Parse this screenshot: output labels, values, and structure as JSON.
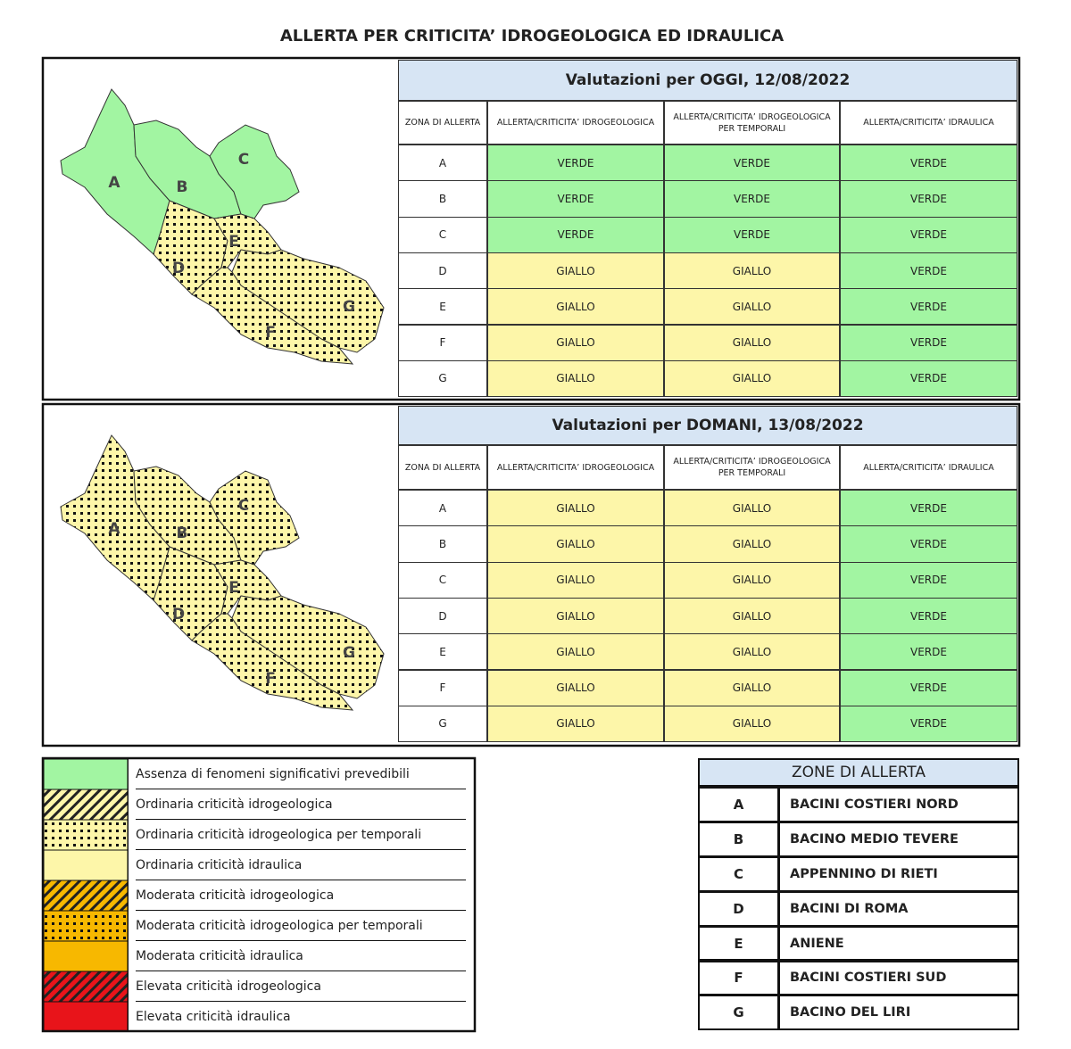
{
  "title": "ALLERTA PER CRITICITA’ IDROGEOLOGICA ED IDRAULICA",
  "cell_colors": {
    "VERDE": "#a2f5a2",
    "GIALLO": "#fdf6a9"
  },
  "panels": [
    {
      "heading": "Valutazioni per OGGI, 12/08/2022",
      "map_labels": [
        "A",
        "B",
        "C",
        "D",
        "E",
        "F",
        "G"
      ],
      "columns": [
        "ZONA DI ALLERTA",
        "ALLERTA/CRITICITA’ IDROGEOLOGICA",
        "ALLERTA/CRITICITA’ IDROGEOLOGICA PER TEMPORALI",
        "ALLERTA/CRITICITA’ IDRAULICA"
      ],
      "rows": [
        [
          "A",
          "VERDE",
          "VERDE",
          "VERDE"
        ],
        [
          "B",
          "VERDE",
          "VERDE",
          "VERDE"
        ],
        [
          "C",
          "VERDE",
          "VERDE",
          "VERDE"
        ],
        [
          "D",
          "GIALLO",
          "GIALLO",
          "VERDE"
        ],
        [
          "E",
          "GIALLO",
          "GIALLO",
          "VERDE"
        ],
        [
          "F",
          "GIALLO",
          "GIALLO",
          "VERDE"
        ],
        [
          "G",
          "GIALLO",
          "GIALLO",
          "VERDE"
        ]
      ]
    },
    {
      "heading": "Valutazioni per DOMANI, 13/08/2022",
      "map_labels": [
        "A",
        "B",
        "C",
        "D",
        "E",
        "F",
        "G"
      ],
      "columns": [
        "ZONA DI ALLERTA",
        "ALLERTA/CRITICITA’ IDROGEOLOGICA",
        "ALLERTA/CRITICITA’ IDROGEOLOGICA PER TEMPORALI",
        "ALLERTA/CRITICITA’ IDRAULICA"
      ],
      "rows": [
        [
          "A",
          "GIALLO",
          "GIALLO",
          "VERDE"
        ],
        [
          "B",
          "GIALLO",
          "GIALLO",
          "VERDE"
        ],
        [
          "C",
          "GIALLO",
          "GIALLO",
          "VERDE"
        ],
        [
          "D",
          "GIALLO",
          "GIALLO",
          "VERDE"
        ],
        [
          "E",
          "GIALLO",
          "GIALLO",
          "VERDE"
        ],
        [
          "F",
          "GIALLO",
          "GIALLO",
          "VERDE"
        ],
        [
          "G",
          "GIALLO",
          "GIALLO",
          "VERDE"
        ]
      ]
    }
  ],
  "legend": [
    "Assenza di fenomeni significativi prevedibili",
    "Ordinaria criticità idrogeologica",
    "Ordinaria criticità idrogeologica per temporali",
    "Ordinaria criticità idraulica",
    "Moderata criticità idrogeologica",
    "Moderata criticità idrogeologica per temporali",
    "Moderata criticità idraulica",
    "Elevata criticità idrogeologica",
    "Elevata criticità idraulica"
  ],
  "zones": {
    "title": "ZONE DI ALLERTA",
    "rows": [
      [
        "A",
        "BACINI COSTIERI NORD"
      ],
      [
        "B",
        "BACINO MEDIO TEVERE"
      ],
      [
        "C",
        "APPENNINO DI RIETI"
      ],
      [
        "D",
        "BACINI DI ROMA"
      ],
      [
        "E",
        "ANIENE"
      ],
      [
        "F",
        "BACINI COSTIERI SUD"
      ],
      [
        "G",
        "BACINO DEL LIRI"
      ]
    ]
  }
}
